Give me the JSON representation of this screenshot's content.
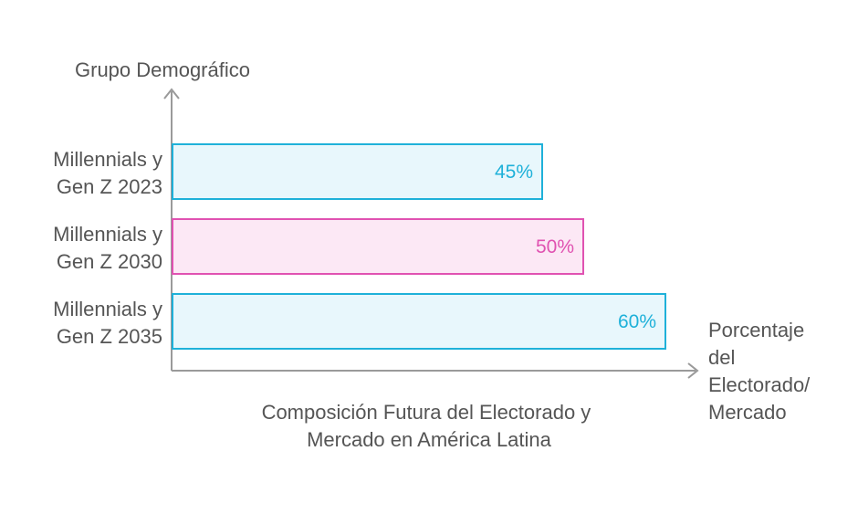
{
  "chart_data": {
    "type": "bar",
    "orientation": "horizontal",
    "title": "Composición Futura del Electorado y Mercado en América Latina",
    "title_lines": [
      "Composición Futura del Electorado y",
      "Mercado en América Latina"
    ],
    "ylabel": "Grupo Demográfico",
    "xlabel": "Porcentaje del Electorado/ Mercado",
    "xlabel_lines": [
      "Porcentaje",
      "del",
      "Electorado/",
      "Mercado"
    ],
    "categories": [
      "Millennials y Gen Z 2023",
      "Millennials y Gen Z 2030",
      "Millennials y Gen Z 2035"
    ],
    "category_lines": [
      [
        "Millennials y",
        "Gen Z 2023"
      ],
      [
        "Millennials y",
        "Gen Z 2030"
      ],
      [
        "Millennials y",
        "Gen Z 2035"
      ]
    ],
    "values": [
      45,
      50,
      60
    ],
    "value_labels": [
      "45%",
      "50%",
      "60%"
    ],
    "unit": "%",
    "colors": [
      {
        "stroke": "#1fb1d9",
        "fill": "#e8f7fc",
        "text": "#1fb1d9"
      },
      {
        "stroke": "#e052b1",
        "fill": "#fce8f5",
        "text": "#e052b1"
      },
      {
        "stroke": "#1fb1d9",
        "fill": "#e8f7fc",
        "text": "#1fb1d9"
      }
    ],
    "axis_color": "#9a9a9a",
    "grid": false,
    "legend": "none"
  }
}
